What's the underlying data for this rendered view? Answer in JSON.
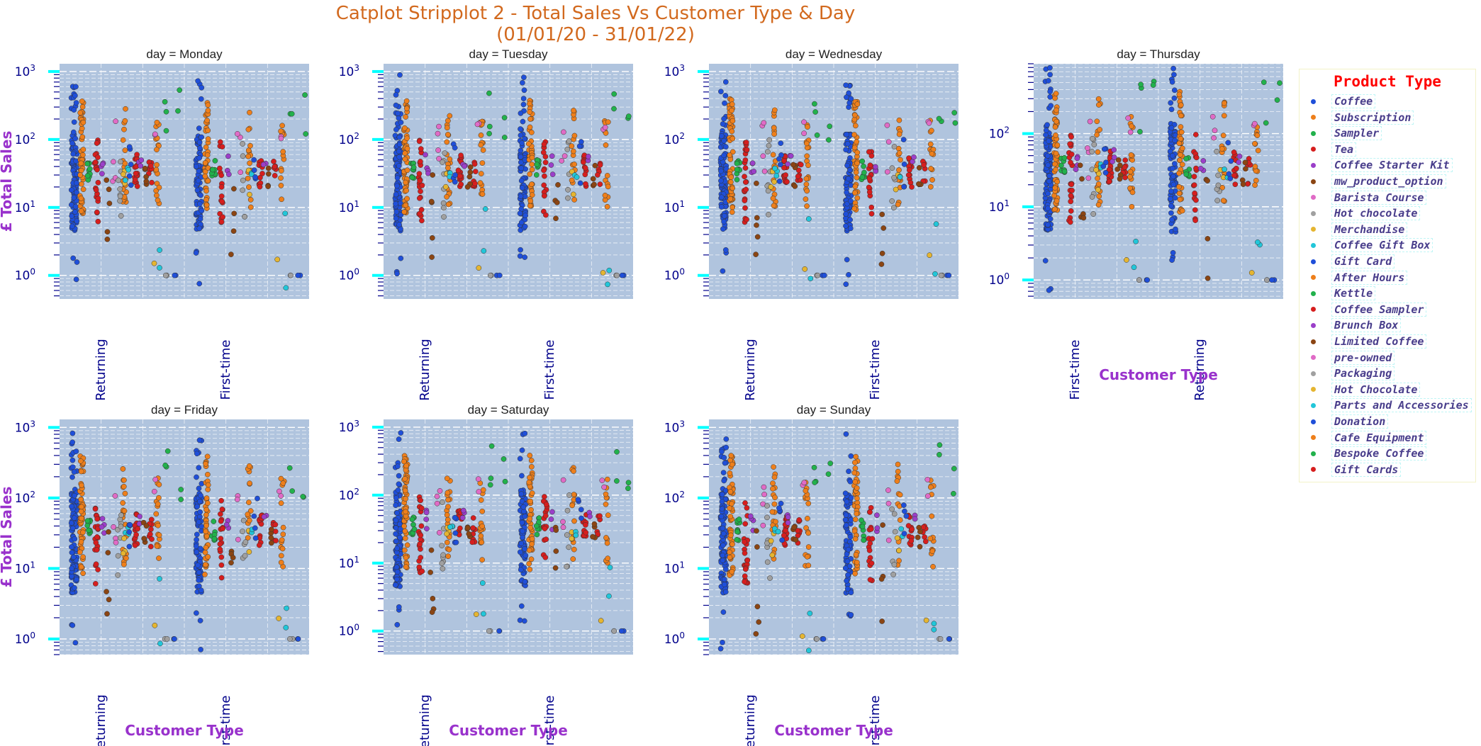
{
  "title": {
    "line1": "Catplot Stripplot 2 - Total Sales Vs Customer Type & Day",
    "line2": "(01/01/20 - 31/01/22)"
  },
  "colors": {
    "title": "#d2691e",
    "axis_label": "#9932cc",
    "tick_label": "#00008b",
    "plot_background": "#b0c4de",
    "major_tick": "#00ffff",
    "legend_title": "#ff0000",
    "legend_text": "#483d8b"
  },
  "legend": {
    "title": "Product Type",
    "items": [
      {
        "label": "Coffee",
        "color": "#1f4fd9"
      },
      {
        "label": "Subscription",
        "color": "#ee7f1b"
      },
      {
        "label": "Sampler",
        "color": "#22b14c"
      },
      {
        "label": "Tea",
        "color": "#d61e1e"
      },
      {
        "label": "Coffee Starter Kit",
        "color": "#9b3fc9"
      },
      {
        "label": "mw_product_option",
        "color": "#8b4513"
      },
      {
        "label": "Barista Course",
        "color": "#e06bc6"
      },
      {
        "label": "Hot chocolate",
        "color": "#a0a0a0"
      },
      {
        "label": "Merchandise",
        "color": "#e5b531"
      },
      {
        "label": "Coffee Gift Box",
        "color": "#22c6d9"
      },
      {
        "label": "Gift Card",
        "color": "#1f4fd9"
      },
      {
        "label": "After Hours",
        "color": "#ee7f1b"
      },
      {
        "label": "Kettle",
        "color": "#22b14c"
      },
      {
        "label": "Coffee Sampler",
        "color": "#d61e1e"
      },
      {
        "label": "Brunch Box",
        "color": "#9b3fc9"
      },
      {
        "label": "Limited Coffee",
        "color": "#8b4513"
      },
      {
        "label": "pre-owned",
        "color": "#e06bc6"
      },
      {
        "label": "Packaging",
        "color": "#a0a0a0"
      },
      {
        "label": "Hot Chocolate",
        "color": "#e5b531"
      },
      {
        "label": "Parts and Accessories",
        "color": "#22c6d9"
      },
      {
        "label": "Donation",
        "color": "#1f4fd9"
      },
      {
        "label": "Cafe Equipment",
        "color": "#ee7f1b"
      },
      {
        "label": "Bespoke Coffee",
        "color": "#22b14c"
      },
      {
        "label": "Gift Cards",
        "color": "#d61e1e"
      }
    ]
  },
  "chart_data": {
    "type": "scatter",
    "subtype": "stripplot",
    "x_variable": "Customer Type",
    "y_variable": "£ Total Sales",
    "y_scale": "log",
    "grid": true,
    "legend_position": "right",
    "panels": [
      {
        "title": "day = Monday",
        "categories": [
          "Returning",
          "First-time"
        ],
        "ylim": [
          0.45,
          1300
        ],
        "yticks": [
          1,
          10,
          100,
          1000
        ],
        "ytick_labels": [
          "10^0",
          "10^1",
          "10^2",
          "10^3"
        ],
        "ylabel": "£ Total Sales",
        "xlabel": ""
      },
      {
        "title": "day = Tuesday",
        "categories": [
          "Returning",
          "First-time"
        ],
        "ylim": [
          0.45,
          1300
        ],
        "yticks": [
          1,
          10,
          100,
          1000
        ],
        "ytick_labels": [
          "10^0",
          "10^1",
          "10^2",
          "10^3"
        ],
        "ylabel": "",
        "xlabel": ""
      },
      {
        "title": "day = Wednesday",
        "categories": [
          "Returning",
          "First-time"
        ],
        "ylim": [
          0.45,
          1300
        ],
        "yticks": [
          1,
          10,
          100,
          1000
        ],
        "ytick_labels": [
          "10^0",
          "10^1",
          "10^2",
          "10^3"
        ],
        "ylabel": "",
        "xlabel": ""
      },
      {
        "title": "day = Thursday",
        "categories": [
          "First-time",
          "Returning"
        ],
        "ylim": [
          0.55,
          900
        ],
        "yticks": [
          1,
          10,
          100
        ],
        "ytick_labels": [
          "10^0",
          "10^1",
          "10^2"
        ],
        "ylabel": "",
        "xlabel": "Customer Type"
      },
      {
        "title": "day = Friday",
        "categories": [
          "Returning",
          "First-time"
        ],
        "ylim": [
          0.6,
          1300
        ],
        "yticks": [
          1,
          10,
          100,
          1000
        ],
        "ytick_labels": [
          "10^0",
          "10^1",
          "10^2",
          "10^3"
        ],
        "ylabel": "£ Total Sales",
        "xlabel": "Customer Type"
      },
      {
        "title": "day = Saturday",
        "categories": [
          "Returning",
          "First-time"
        ],
        "ylim": [
          0.45,
          1300
        ],
        "yticks": [
          1,
          10,
          100,
          1000
        ],
        "ytick_labels": [
          "10^0",
          "10^1",
          "10^2",
          "10^3"
        ],
        "ylabel": "",
        "xlabel": "Customer Type"
      },
      {
        "title": "day = Sunday",
        "categories": [
          "Returning",
          "First-time"
        ],
        "ylim": [
          0.6,
          1300
        ],
        "yticks": [
          1,
          10,
          100,
          1000
        ],
        "ytick_labels": [
          "10^0",
          "10^1",
          "10^2",
          "10^3"
        ],
        "ylabel": "",
        "xlabel": "Customer Type"
      }
    ],
    "series": [
      {
        "name": "Coffee",
        "typical_range": [
          5,
          1000
        ],
        "extremes": [
          1,
          2
        ]
      },
      {
        "name": "Subscription",
        "typical_range": [
          8,
          400
        ]
      },
      {
        "name": "Sampler",
        "typical_range": [
          25,
          50
        ]
      },
      {
        "name": "Tea",
        "typical_range": [
          6,
          100
        ]
      },
      {
        "name": "Coffee Starter Kit",
        "typical_range": [
          30,
          60
        ]
      },
      {
        "name": "mw_product_option",
        "typical_range": [
          1,
          45
        ]
      },
      {
        "name": "Barista Course",
        "typical_range": [
          20,
          200
        ]
      },
      {
        "name": "Hot chocolate",
        "typical_range": [
          7,
          100
        ]
      },
      {
        "name": "Merchandise",
        "typical_range": [
          15,
          40
        ]
      },
      {
        "name": "Coffee Gift Box",
        "typical_range": [
          25,
          40
        ]
      },
      {
        "name": "Gift Card",
        "typical_range": [
          20,
          100
        ]
      },
      {
        "name": "After Hours",
        "typical_range": [
          10,
          300
        ]
      },
      {
        "name": "Kettle",
        "typical_range": [
          100,
          600
        ]
      },
      {
        "name": "Coffee Sampler",
        "typical_range": [
          20,
          60
        ]
      },
      {
        "name": "Brunch Box",
        "typical_range": [
          40,
          60
        ]
      },
      {
        "name": "Limited Coffee",
        "typical_range": [
          20,
          45
        ]
      },
      {
        "name": "pre-owned",
        "typical_range": [
          100,
          200
        ]
      },
      {
        "name": "Packaging",
        "typical_range": [
          1,
          1
        ]
      },
      {
        "name": "Hot Chocolate",
        "typical_range": [
          1,
          2
        ]
      },
      {
        "name": "Parts and Accessories",
        "typical_range": [
          0.6,
          10
        ]
      },
      {
        "name": "Donation",
        "typical_range": [
          1,
          1
        ]
      },
      {
        "name": "Cafe Equipment",
        "typical_range": [
          10,
          200
        ]
      },
      {
        "name": "Bespoke Coffee",
        "typical_range": [
          90,
          600
        ]
      },
      {
        "name": "Gift Cards",
        "typical_range": [
          20,
          50
        ]
      }
    ]
  }
}
